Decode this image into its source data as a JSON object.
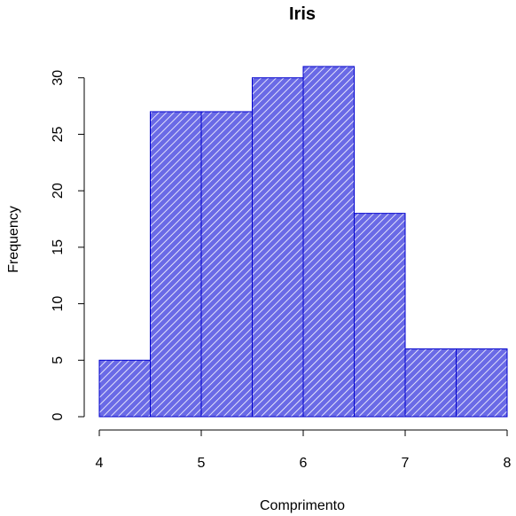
{
  "chart_data": {
    "type": "bar",
    "subtype": "histogram",
    "title": "Iris",
    "xlabel": "Comprimento",
    "ylabel": "Frequency",
    "bins": [
      {
        "start": 4.0,
        "end": 4.5,
        "count": 5
      },
      {
        "start": 4.5,
        "end": 5.0,
        "count": 27
      },
      {
        "start": 5.0,
        "end": 5.5,
        "count": 27
      },
      {
        "start": 5.5,
        "end": 6.0,
        "count": 30
      },
      {
        "start": 6.0,
        "end": 6.5,
        "count": 31
      },
      {
        "start": 6.5,
        "end": 7.0,
        "count": 18
      },
      {
        "start": 7.0,
        "end": 7.5,
        "count": 6
      },
      {
        "start": 7.5,
        "end": 8.0,
        "count": 6
      }
    ],
    "xlim": [
      4,
      8
    ],
    "ylim": [
      0,
      31
    ],
    "xticks": [
      "4",
      "5",
      "6",
      "7",
      "8"
    ],
    "yticks": [
      "0",
      "5",
      "10",
      "15",
      "20",
      "25",
      "30"
    ],
    "grid": false,
    "colors": {
      "bar_fill": "#6a6ae6",
      "bar_border": "#0000cd",
      "hatch": "#ffffff"
    }
  }
}
